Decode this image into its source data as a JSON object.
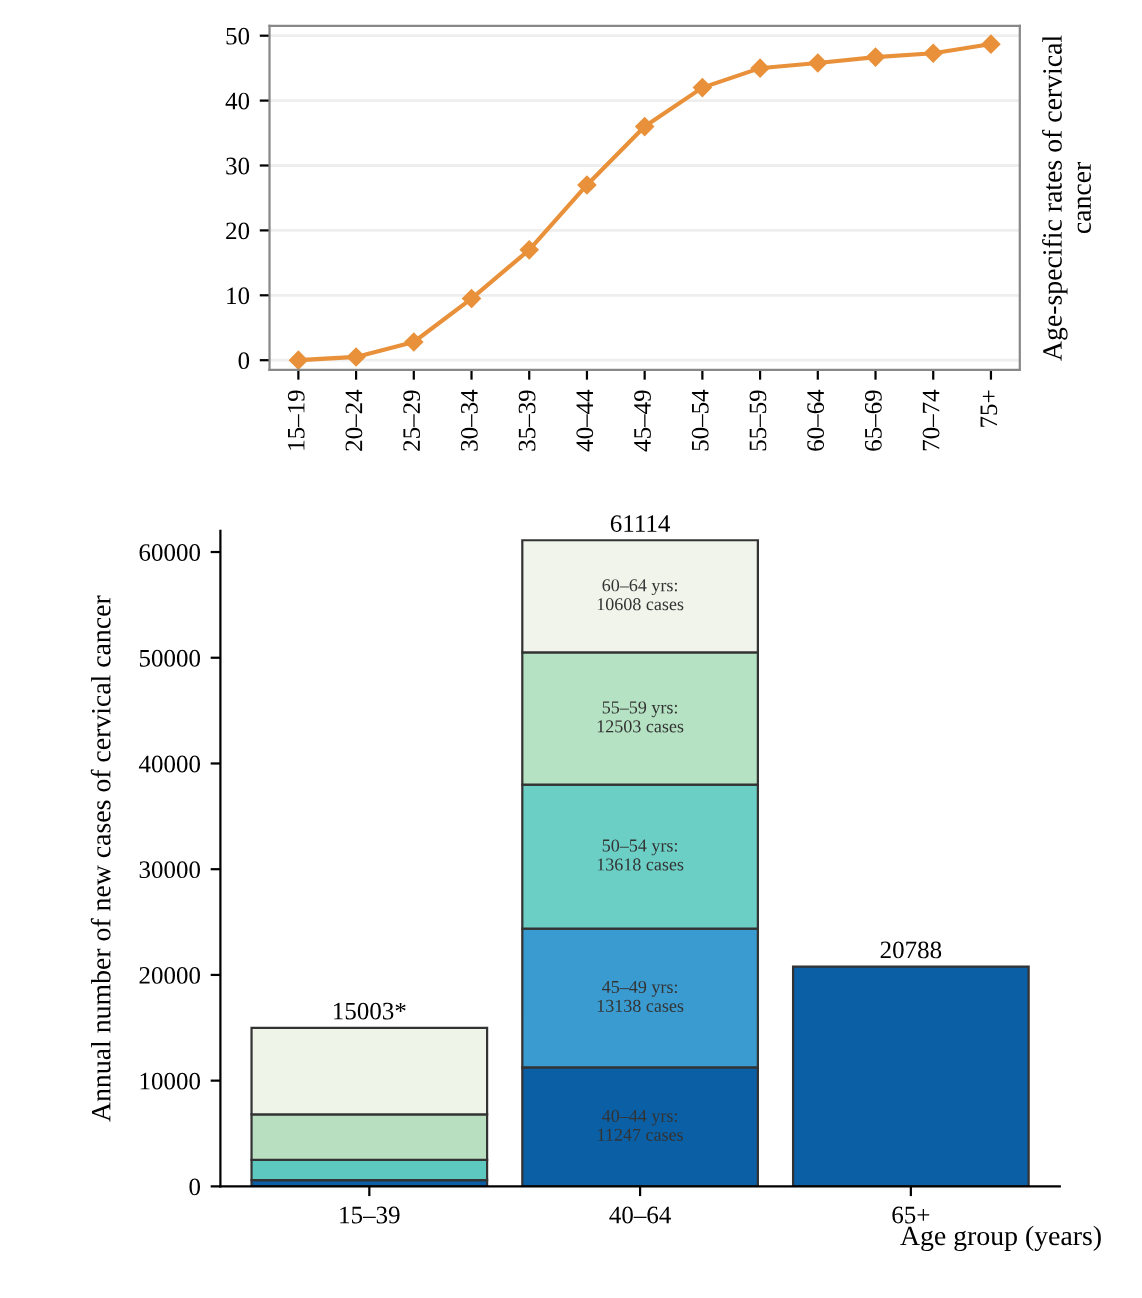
{
  "chart_data": [
    {
      "type": "line",
      "ylabel": "Age-specific rates of cervical cancer",
      "categories": [
        "15–19",
        "20–24",
        "25–29",
        "30–34",
        "35–39",
        "40–44",
        "45–49",
        "50–54",
        "55–59",
        "60–64",
        "65–69",
        "70–74",
        "75+"
      ],
      "series": [
        {
          "color": "#e8913a",
          "values": [
            0,
            0.5,
            2.8,
            9.5,
            17,
            27,
            36,
            42,
            45,
            45.8,
            46.7,
            47.3,
            48.7
          ]
        }
      ],
      "ylim": [
        -1.5,
        51.5
      ],
      "yticks": [
        0,
        10,
        20,
        30,
        40,
        50
      ],
      "grid": "y",
      "marker": "diamond",
      "line_style": "solid"
    },
    {
      "type": "bar",
      "stacked": true,
      "xlabel": "Age group (years)",
      "ylabel": "Annual number of new cases of cervical cancer",
      "categories": [
        "15–39",
        "40–64",
        "65+"
      ],
      "series": [
        {
          "colors": [
            "#0b5fa5",
            "#0b5fa5",
            "#0b5fa5"
          ],
          "values": [
            600,
            11247,
            20788
          ],
          "value_labels": [
            null,
            "40–44 yrs:\n11247 cases",
            null
          ]
        },
        {
          "colors": [
            "#5cc8c0",
            "#3a9bd0",
            null
          ],
          "values": [
            1900,
            13138,
            null
          ],
          "value_labels": [
            null,
            "45–49 yrs:\n13138 cases",
            null
          ]
        },
        {
          "colors": [
            "#b8e0c0",
            "#6ccfc6",
            null
          ],
          "values": [
            4300,
            13618,
            null
          ],
          "value_labels": [
            null,
            "50–54 yrs:\n13618 cases",
            null
          ]
        },
        {
          "colors": [
            "#eef5e8",
            "#b5e2c3",
            null
          ],
          "values": [
            8200,
            12503,
            null
          ],
          "value_labels": [
            null,
            "55–59 yrs:\n12503 cases",
            null
          ]
        },
        {
          "colors": [
            null,
            "#f0f4ea",
            null
          ],
          "values": [
            null,
            10608,
            null
          ],
          "value_labels": [
            null,
            "60–64 yrs:\n10608 cases",
            null
          ]
        }
      ],
      "totals": [
        "15003*",
        "61114",
        "20788"
      ],
      "ylim": [
        0,
        62000
      ],
      "yticks": [
        0,
        10000,
        20000,
        30000,
        40000,
        50000,
        60000
      ],
      "grid": false
    }
  ]
}
